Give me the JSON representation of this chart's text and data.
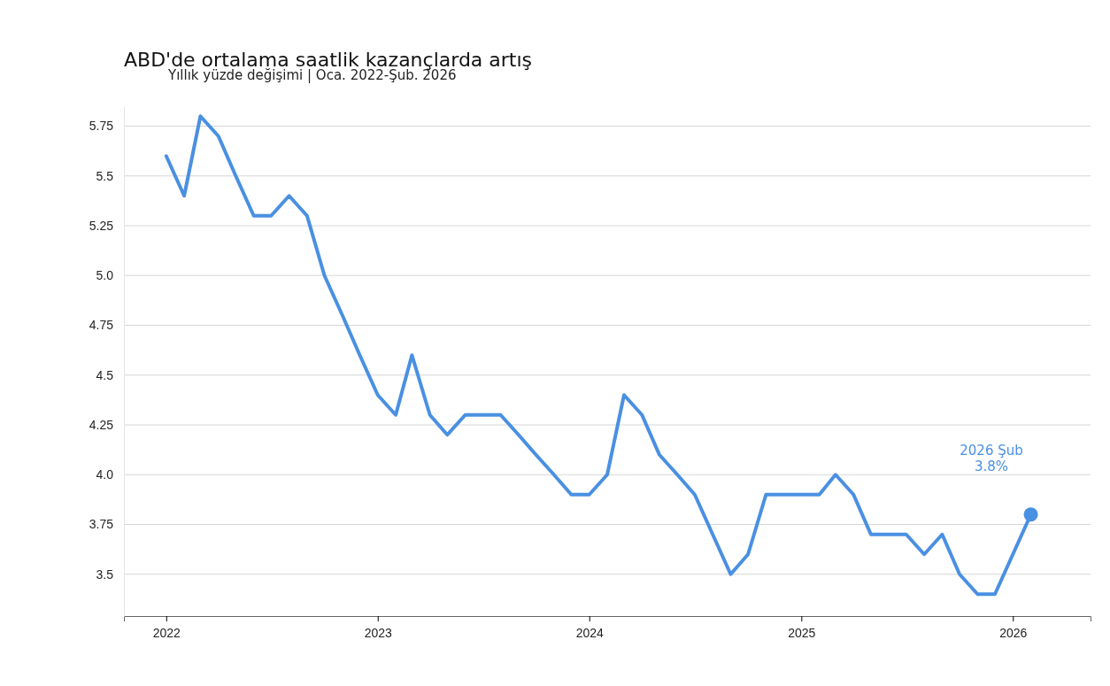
{
  "chart_data": {
    "type": "line",
    "title": "ABD'de ortalama saatlik kazançlarda artış",
    "subtitle": "Yıllık yüzde değişimi | Oca. 2022-Şub. 2026",
    "x": [
      "2022-01",
      "2022-02",
      "2022-03",
      "2022-04",
      "2022-05",
      "2022-06",
      "2022-07",
      "2022-08",
      "2022-09",
      "2022-10",
      "2022-11",
      "2022-12",
      "2023-01",
      "2023-02",
      "2023-03",
      "2023-04",
      "2023-05",
      "2023-06",
      "2023-07",
      "2023-08",
      "2023-09",
      "2023-10",
      "2023-11",
      "2023-12",
      "2024-01",
      "2024-02",
      "2024-03",
      "2024-04",
      "2024-05",
      "2024-06",
      "2024-07",
      "2024-08",
      "2024-09",
      "2024-10",
      "2024-11",
      "2024-12",
      "2025-01",
      "2025-02",
      "2025-03",
      "2025-04",
      "2025-05",
      "2025-06",
      "2025-07",
      "2025-08",
      "2025-09",
      "2025-10",
      "2025-11",
      "2025-12",
      "2026-01",
      "2026-02"
    ],
    "series": [
      {
        "color": "#4a90e2",
        "values": [
          5.6,
          5.4,
          5.8,
          5.7,
          5.5,
          5.3,
          5.3,
          5.4,
          5.3,
          5.0,
          4.8,
          4.6,
          4.4,
          4.3,
          4.6,
          4.3,
          4.2,
          4.3,
          4.3,
          4.3,
          4.2,
          4.1,
          4.0,
          3.9,
          3.9,
          4.0,
          4.4,
          4.3,
          4.1,
          4.0,
          3.9,
          3.7,
          3.5,
          3.6,
          3.9,
          3.9,
          3.9,
          3.9,
          4.0,
          3.9,
          3.7,
          3.7,
          3.7,
          3.6,
          3.7,
          3.5,
          3.4,
          3.4,
          3.6,
          3.8
        ]
      },
      {
        "type": "scatter",
        "color": "#4a90e2",
        "x": [
          "2026-02"
        ],
        "values": [
          3.8
        ]
      }
    ],
    "xlim": [
      "2021-10-20",
      "2026-05-15"
    ],
    "xticks": [
      {
        "value": "2022-01-01",
        "label": "2022"
      },
      {
        "value": "2023-01-01",
        "label": "2023"
      },
      {
        "value": "2024-01-01",
        "label": "2024"
      },
      {
        "value": "2025-01-01",
        "label": "2025"
      },
      {
        "value": "2026-01-01",
        "label": "2026"
      }
    ],
    "ylim": [
      3.29,
      5.85
    ],
    "yticks": [
      3.5,
      3.75,
      {
        "value": 4,
        "label": "4.0"
      },
      4.25,
      4.5,
      4.75,
      {
        "value": 5,
        "label": "5.0"
      },
      5.25,
      5.5,
      5.75
    ],
    "grid": "y",
    "line_style": "solid",
    "annotations": [
      "2026 Şub\n3.8%"
    ]
  }
}
